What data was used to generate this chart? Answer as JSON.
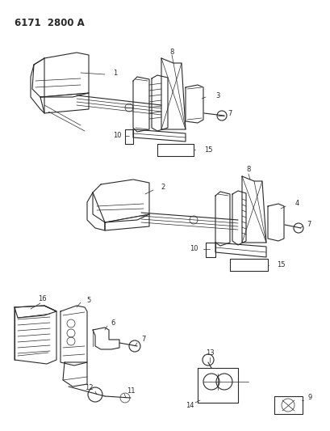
{
  "title": "6171  2800 A",
  "bg_color": "#ffffff",
  "lc": "#2a2a2a",
  "fig_width": 4.1,
  "fig_height": 5.33,
  "dpi": 100,
  "label_fs": 6.0,
  "title_fs": 8.5
}
